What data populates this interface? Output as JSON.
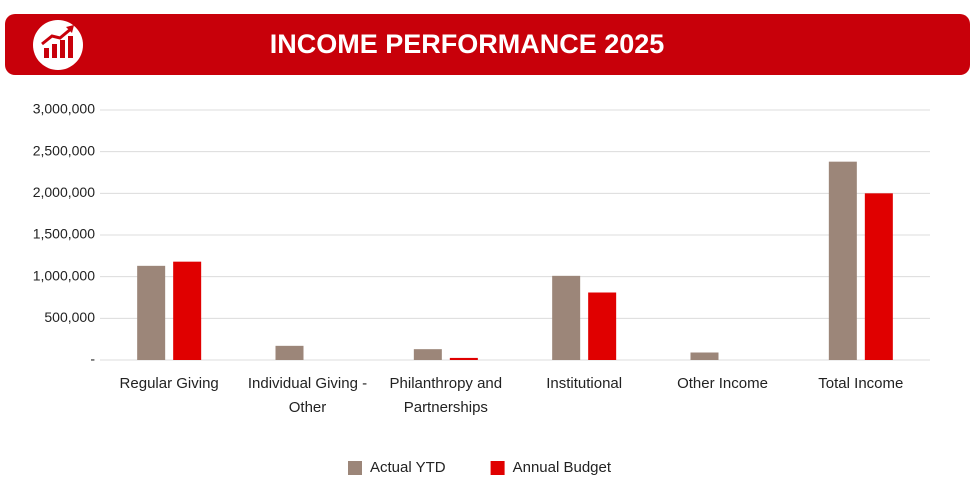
{
  "chart_data": {
    "type": "bar",
    "title": "INCOME PERFORMANCE 2025",
    "categories": [
      "Regular Giving",
      "Individual Giving - Other",
      "Philanthropy and Partnerships",
      "Institutional",
      "Other Income",
      "Total Income"
    ],
    "series": [
      {
        "name": "Actual YTD",
        "color": "#9c8679",
        "values": [
          1130000,
          170000,
          130000,
          1010000,
          90000,
          2380000
        ]
      },
      {
        "name": "Annual Budget",
        "color": "#e00000",
        "values": [
          1180000,
          0,
          25000,
          810000,
          0,
          2000000
        ]
      }
    ],
    "ylim": [
      0,
      3000000
    ],
    "yticks": [
      {
        "value": 0,
        "label": "-"
      },
      {
        "value": 500000,
        "label": "500,000"
      },
      {
        "value": 1000000,
        "label": "1,000,000"
      },
      {
        "value": 1500000,
        "label": "1,500,000"
      },
      {
        "value": 2000000,
        "label": "2,000,000"
      },
      {
        "value": 2500000,
        "label": "2,500,000"
      },
      {
        "value": 3000000,
        "label": "3,000,000"
      }
    ],
    "grid": true,
    "legend": "bottom"
  }
}
